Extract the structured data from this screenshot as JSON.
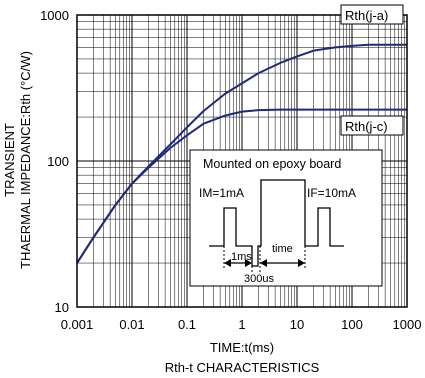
{
  "chart_data": {
    "type": "line",
    "title": "Rth-t CHARACTERISTICS",
    "xlabel": "TIME:t(ms)",
    "ylabel_line1": "TRANSIENT",
    "ylabel_line2": "THAERMAL IMPEDANCE:Rth (°C/W)",
    "x_scale": "log",
    "y_scale": "log",
    "xlim": [
      0.001,
      1000
    ],
    "ylim": [
      10,
      1000
    ],
    "x_ticks": [
      "0.001",
      "0.01",
      "0.1",
      "1",
      "10",
      "100",
      "1000"
    ],
    "y_ticks": [
      "10",
      "100",
      "1000"
    ],
    "grid": true,
    "line_color": "#1f2a7a",
    "series": [
      {
        "name": "Rth(j-a)",
        "x": [
          0.001,
          0.002,
          0.005,
          0.01,
          0.02,
          0.05,
          0.1,
          0.2,
          0.5,
          1,
          2,
          5,
          10,
          20,
          50,
          100,
          200,
          500,
          1000
        ],
        "values": [
          20,
          30,
          50,
          70,
          92,
          130,
          170,
          220,
          290,
          340,
          400,
          470,
          520,
          570,
          600,
          615,
          625,
          625,
          625
        ]
      },
      {
        "name": "Rth(j-c)",
        "x": [
          0.001,
          0.002,
          0.005,
          0.01,
          0.02,
          0.05,
          0.1,
          0.2,
          0.5,
          1,
          2,
          5,
          10,
          20,
          50,
          100,
          200,
          500,
          1000
        ],
        "values": [
          20,
          30,
          50,
          70,
          90,
          123,
          150,
          180,
          205,
          218,
          223,
          225,
          225,
          225,
          225,
          225,
          225,
          225,
          225
        ]
      }
    ],
    "inset": {
      "title": "Mounted on epoxy board",
      "im_label": "IM=1mA",
      "if_label": "IF=10mA",
      "time_1ms": "1ms",
      "time_label": "time",
      "time_300us": "300us"
    }
  }
}
